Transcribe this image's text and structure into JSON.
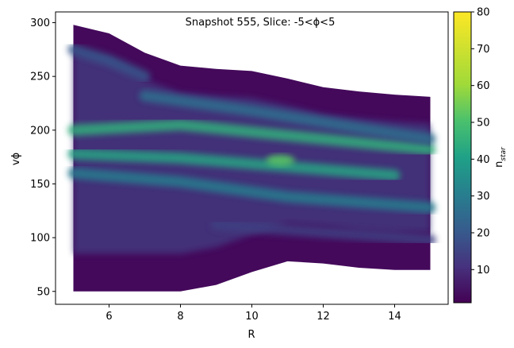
{
  "chart_data": {
    "type": "heatmap",
    "title": "Snapshot 555, Slice: -5<ϕ<5",
    "xlabel": "R",
    "ylabel": "vϕ",
    "xlim": [
      4.5,
      15.5
    ],
    "ylim": [
      38,
      310
    ],
    "x_ticks": [
      6,
      8,
      10,
      12,
      14
    ],
    "x_tick_labels": [
      "6",
      "8",
      "10",
      "12",
      "14"
    ],
    "y_ticks": [
      50,
      100,
      150,
      200,
      250,
      300
    ],
    "y_tick_labels": [
      "50",
      "100",
      "150",
      "200",
      "250",
      "300"
    ],
    "colorbar": {
      "label": "n",
      "label_sub": "star",
      "range": [
        1,
        80
      ],
      "ticks": [
        10,
        20,
        30,
        40,
        50,
        60,
        70,
        80
      ],
      "tick_labels": [
        "10",
        "20",
        "30",
        "40",
        "50",
        "60",
        "70",
        "80"
      ],
      "colormap": "viridis"
    },
    "envelope_upper": [
      [
        5.0,
        298
      ],
      [
        6.0,
        290
      ],
      [
        7.0,
        272
      ],
      [
        8.0,
        260
      ],
      [
        9.0,
        257
      ],
      [
        10.0,
        255
      ],
      [
        11.0,
        248
      ],
      [
        12.0,
        240
      ],
      [
        13.0,
        236
      ],
      [
        14.0,
        233
      ],
      [
        15.0,
        231
      ]
    ],
    "envelope_lower": [
      [
        5.0,
        50
      ],
      [
        6.0,
        50
      ],
      [
        7.0,
        50
      ],
      [
        8.0,
        50
      ],
      [
        9.0,
        56
      ],
      [
        10.0,
        68
      ],
      [
        11.0,
        78
      ],
      [
        12.0,
        76
      ],
      [
        13.0,
        72
      ],
      [
        14.0,
        70
      ],
      [
        15.0,
        70
      ]
    ],
    "ridges": [
      {
        "x": [
          5.0,
          8.0,
          11.0,
          15.0
        ],
        "y": [
          200,
          205,
          195,
          182
        ],
        "density": 45
      },
      {
        "x": [
          5.0,
          8.0,
          11.0,
          14.0
        ],
        "y": [
          178,
          174,
          166,
          158
        ],
        "density": 42
      },
      {
        "x": [
          5.0,
          8.0,
          11.0,
          15.0
        ],
        "y": [
          160,
          152,
          138,
          128
        ],
        "density": 30
      },
      {
        "x": [
          7.0,
          10.0,
          13.0,
          15.0
        ],
        "y": [
          232,
          218,
          202,
          192
        ],
        "density": 26
      },
      {
        "x": [
          9.0,
          12.0,
          15.0
        ],
        "y": [
          112,
          105,
          98
        ],
        "density": 14
      },
      {
        "x": [
          5.0,
          6.0,
          7.0
        ],
        "y": [
          275,
          265,
          250
        ],
        "density": 20
      }
    ],
    "peak": {
      "x": 10.8,
      "y": 172,
      "value": 52
    }
  }
}
